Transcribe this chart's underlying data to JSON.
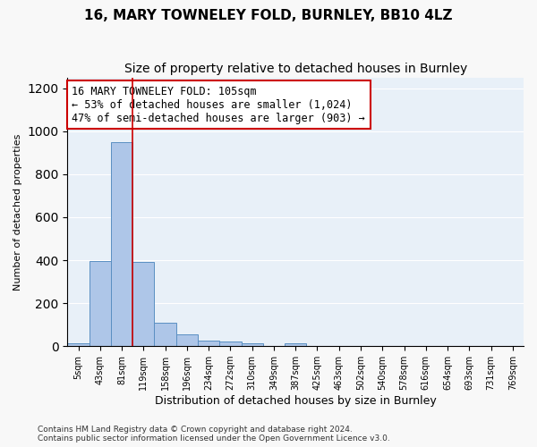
{
  "title": "16, MARY TOWNELEY FOLD, BURNLEY, BB10 4LZ",
  "subtitle": "Size of property relative to detached houses in Burnley",
  "xlabel": "Distribution of detached houses by size in Burnley",
  "ylabel": "Number of detached properties",
  "bar_values": [
    15,
    395,
    950,
    390,
    110,
    55,
    25,
    20,
    15,
    0,
    15,
    0,
    0,
    0,
    0,
    0,
    0,
    0,
    0,
    0,
    0
  ],
  "bar_labels": [
    "5sqm",
    "43sqm",
    "81sqm",
    "119sqm",
    "158sqm",
    "196sqm",
    "234sqm",
    "272sqm",
    "310sqm",
    "349sqm",
    "387sqm",
    "425sqm",
    "463sqm",
    "502sqm",
    "540sqm",
    "578sqm",
    "616sqm",
    "654sqm",
    "693sqm",
    "731sqm",
    "769sqm"
  ],
  "bar_color": "#aec6e8",
  "bar_edge_color": "#5a8fc2",
  "vline_x": 2.5,
  "vline_color": "#cc0000",
  "annotation_line1": "16 MARY TOWNELEY FOLD: 105sqm",
  "annotation_line2": "← 53% of detached houses are smaller (1,024)",
  "annotation_line3": "47% of semi-detached houses are larger (903) →",
  "annotation_box_color": "#cc0000",
  "ylim": [
    0,
    1250
  ],
  "yticks": [
    0,
    200,
    400,
    600,
    800,
    1000,
    1200
  ],
  "background_color": "#e8f0f8",
  "grid_color": "#ffffff",
  "footer_line1": "Contains HM Land Registry data © Crown copyright and database right 2024.",
  "footer_line2": "Contains public sector information licensed under the Open Government Licence v3.0.",
  "title_fontsize": 11,
  "subtitle_fontsize": 10,
  "annotation_fontsize": 8.5,
  "fig_facecolor": "#f8f8f8"
}
